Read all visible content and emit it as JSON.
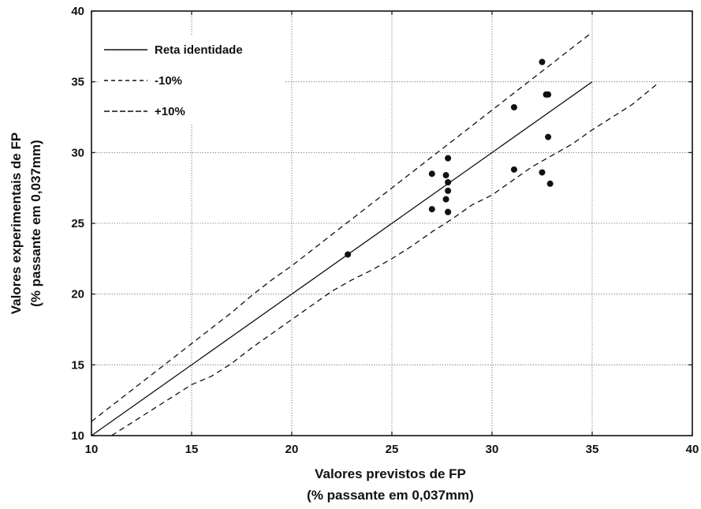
{
  "chart_data": {
    "type": "scatter",
    "title": "",
    "xlabel": [
      "Valores previstos de FP",
      "(% passante em 0,037mm)"
    ],
    "ylabel": [
      "Valores experimentais de FP",
      "(% passante em 0,037mm)"
    ],
    "xlim": [
      10,
      40
    ],
    "ylim": [
      10,
      40
    ],
    "xticks": [
      10,
      15,
      20,
      25,
      30,
      35,
      40
    ],
    "yticks": [
      10,
      15,
      20,
      25,
      30,
      35,
      40
    ],
    "grid": true,
    "legend_position": "top-left",
    "series": [
      {
        "name": "Reta identidade",
        "kind": "line",
        "style": "solid",
        "x": [
          10,
          35
        ],
        "y": [
          10,
          35
        ]
      },
      {
        "name": "-10%",
        "kind": "line",
        "style": "dashed",
        "x": [
          11,
          12,
          13,
          14,
          15,
          16,
          17,
          18,
          19,
          20,
          21,
          22,
          23,
          24,
          25,
          26,
          27,
          28,
          29,
          30,
          31,
          32,
          33,
          34,
          35,
          36,
          37,
          38.2
        ],
        "y": [
          10,
          10.9,
          11.8,
          12.7,
          13.6,
          14.2,
          15.1,
          16.2,
          17.2,
          18.2,
          19.2,
          20.2,
          21.0,
          21.7,
          22.5,
          23.4,
          24.4,
          25.3,
          26.3,
          27.0,
          28.0,
          29.0,
          29.8,
          30.6,
          31.6,
          32.5,
          33.4,
          34.8
        ]
      },
      {
        "name": "+10%",
        "kind": "line",
        "style": "dashed",
        "x": [
          10,
          11,
          12,
          13,
          14,
          15,
          16,
          17,
          18,
          19,
          20,
          21,
          22,
          23,
          24,
          25,
          26,
          27,
          28,
          29,
          30,
          31,
          32,
          33,
          34,
          35
        ],
        "y": [
          11.0,
          12.1,
          13.2,
          14.3,
          15.4,
          16.5,
          17.6,
          18.7,
          19.9,
          21.0,
          22.0,
          23.1,
          24.2,
          25.3,
          26.4,
          27.5,
          28.6,
          29.7,
          30.8,
          31.9,
          33.0,
          34.1,
          35.2,
          36.3,
          37.4,
          38.5
        ]
      },
      {
        "name": "",
        "kind": "scatter",
        "marker": "filled-circle",
        "x": [
          22.8,
          27.0,
          27.0,
          27.7,
          27.7,
          27.8,
          27.8,
          27.8,
          27.8,
          27.8,
          31.1,
          31.1,
          32.5,
          32.5,
          32.7,
          32.8,
          32.8,
          32.9
        ],
        "y": [
          22.8,
          28.5,
          26.0,
          28.4,
          26.7,
          29.6,
          27.9,
          27.3,
          25.8,
          25.8,
          33.2,
          28.8,
          36.4,
          28.6,
          34.1,
          34.1,
          31.1,
          27.8
        ]
      }
    ],
    "legend": [
      {
        "label": "Reta identidade",
        "style": "solid"
      },
      {
        "label": "-10%",
        "style": "dashed"
      },
      {
        "label": "+10%",
        "style": "dashed"
      }
    ]
  }
}
